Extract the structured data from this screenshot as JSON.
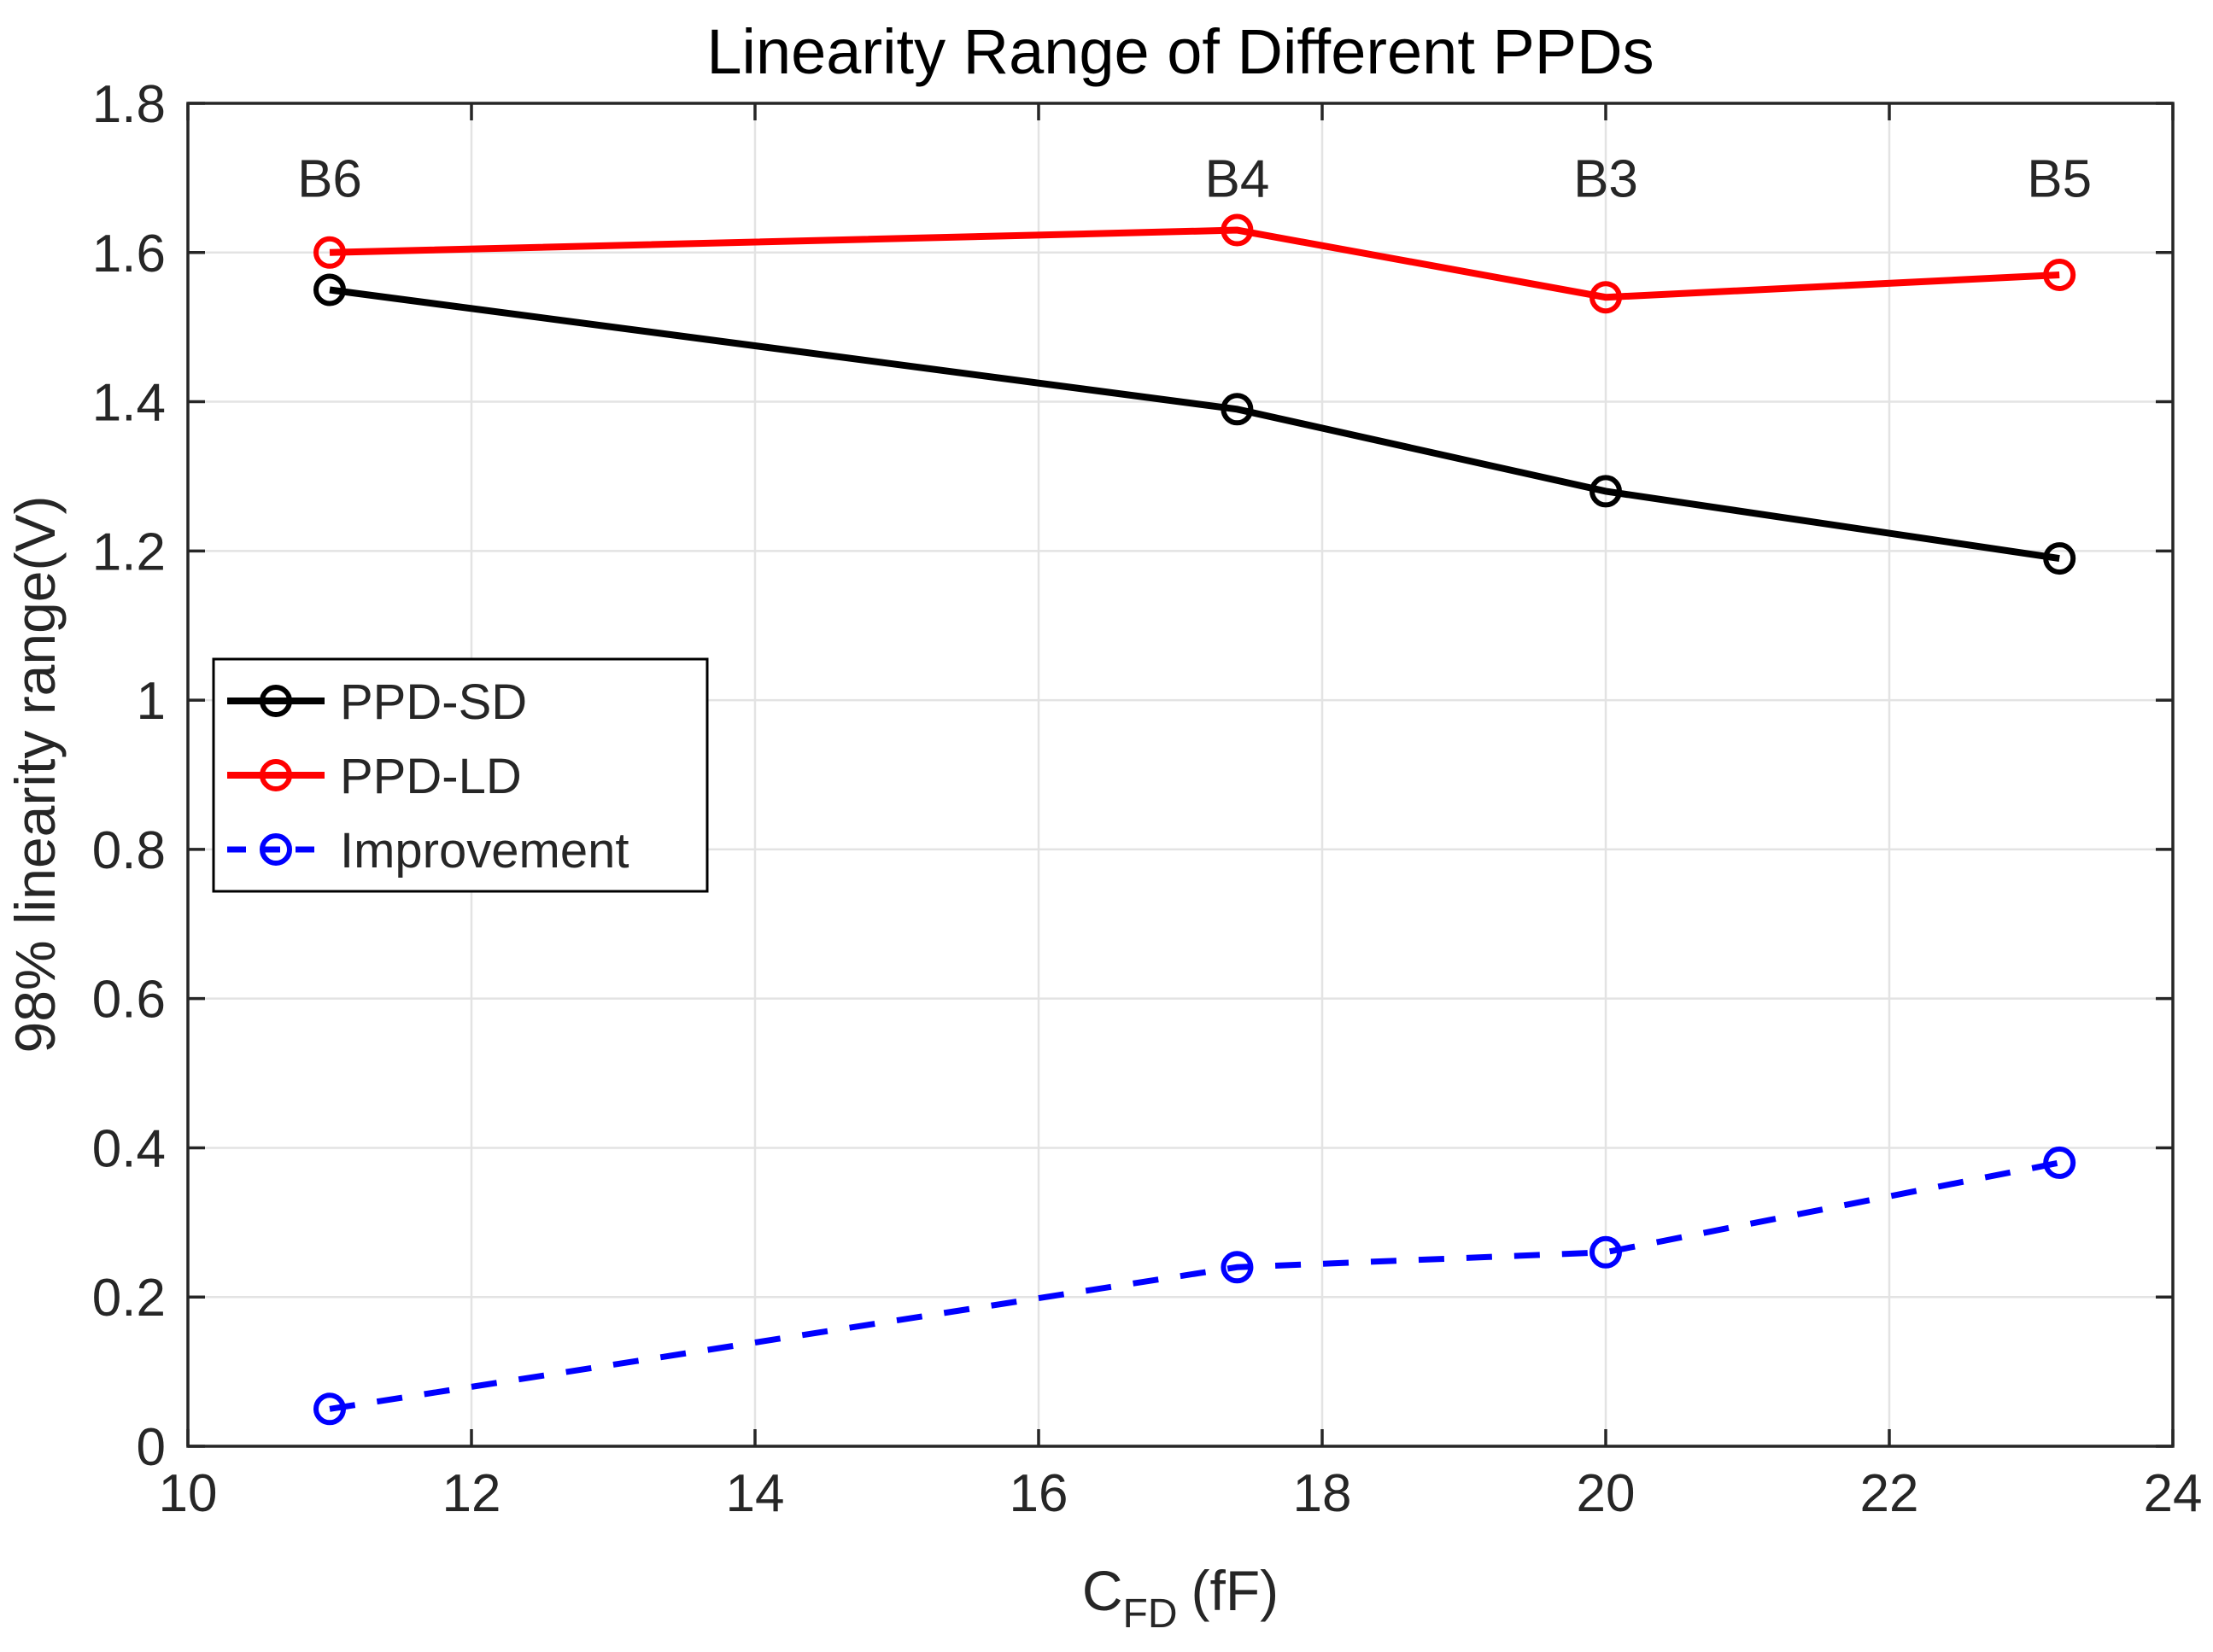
{
  "chart_data": {
    "type": "line",
    "title": "Linearity Range of Different PPDs",
    "ylabel": "98% linearity range(V)",
    "xlabel": {
      "prefix": "C",
      "subscript": "FD",
      "suffix": "(fF)"
    },
    "xlim": [
      10,
      24
    ],
    "ylim": [
      0,
      1.8
    ],
    "grid": true,
    "xticks": {
      "values": [
        10,
        12,
        14,
        16,
        18,
        20,
        22,
        24
      ],
      "labels": [
        "10",
        "12",
        "14",
        "16",
        "18",
        "20",
        "22",
        "24"
      ]
    },
    "yticks": {
      "values": [
        0,
        0.2,
        0.4,
        0.6,
        0.8,
        1,
        1.2,
        1.4,
        1.6,
        1.8
      ],
      "labels": [
        "0",
        "0.2",
        "0.4",
        "0.6",
        "0.8",
        "1",
        "1.2",
        "1.4",
        "1.6",
        "1.8"
      ]
    },
    "x": [
      11,
      17.4,
      20,
      23.2
    ],
    "series": [
      {
        "name": "PPD-SD",
        "color": "#000000",
        "style": "solid",
        "marker": "circle",
        "values": [
          1.55,
          1.39,
          1.28,
          1.19
        ]
      },
      {
        "name": "PPD-LD",
        "color": "#ff0000",
        "style": "solid",
        "marker": "circle",
        "values": [
          1.6,
          1.63,
          1.54,
          1.57
        ]
      },
      {
        "name": "Improvement",
        "color": "#0000ff",
        "style": "dashed",
        "marker": "circle",
        "values": [
          0.05,
          0.24,
          0.26,
          0.38
        ]
      }
    ],
    "annotations": [
      {
        "text": "B6",
        "x": 11,
        "y": 1.7
      },
      {
        "text": "B4",
        "x": 17.4,
        "y": 1.7
      },
      {
        "text": "B3",
        "x": 20,
        "y": 1.7
      },
      {
        "text": "B5",
        "x": 23.2,
        "y": 1.7
      }
    ],
    "legend": {
      "position": "upper-left-inside",
      "entries": [
        "PPD-SD",
        "PPD-LD",
        "Improvement"
      ]
    },
    "colors": {
      "background": "#ffffff",
      "axis": "#262626",
      "grid": "#e3e3e3",
      "annotation": "#000000",
      "legend_border": "#000000"
    }
  }
}
